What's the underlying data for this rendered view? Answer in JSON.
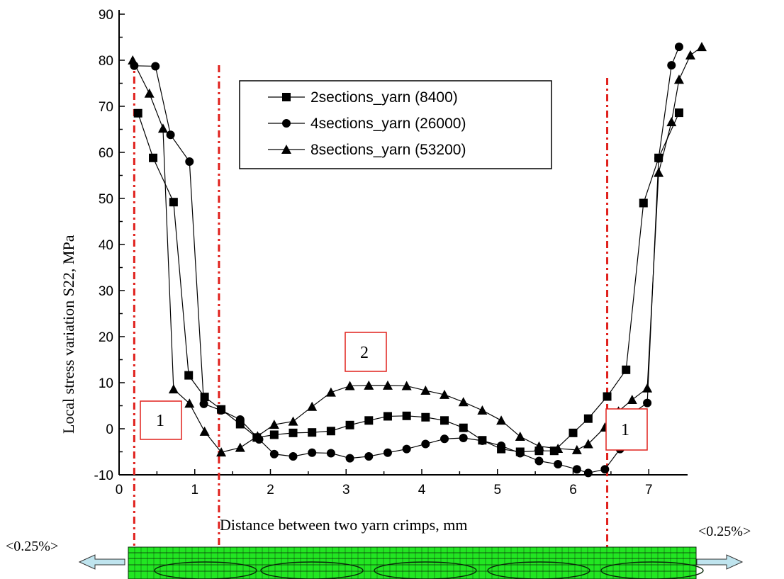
{
  "chart_data": {
    "type": "line",
    "title": "",
    "xlabel": "Distance between two yarn crimps, mm",
    "ylabel": "Local stress variation S22, MPa",
    "xlim": [
      0,
      7.5
    ],
    "ylim": [
      -10,
      90
    ],
    "xticks": [
      0,
      1,
      2,
      3,
      4,
      5,
      6,
      7
    ],
    "yticks": [
      -10,
      0,
      10,
      20,
      30,
      40,
      50,
      60,
      70,
      80,
      90
    ],
    "grid": false,
    "legend_position": "top-center",
    "series": [
      {
        "name": "2sections_yarn (8400)",
        "marker": "square",
        "points": [
          [
            0.25,
            68.5
          ],
          [
            0.45,
            58.8
          ],
          [
            0.72,
            49.2
          ],
          [
            0.92,
            11.6
          ],
          [
            1.13,
            6.9
          ],
          [
            1.35,
            4.2
          ],
          [
            1.6,
            1.0
          ],
          [
            1.82,
            -1.9
          ],
          [
            2.05,
            -1.3
          ],
          [
            2.3,
            -0.9
          ],
          [
            2.55,
            -0.8
          ],
          [
            2.8,
            -0.5
          ],
          [
            3.05,
            0.8
          ],
          [
            3.3,
            1.8
          ],
          [
            3.55,
            2.7
          ],
          [
            3.8,
            2.8
          ],
          [
            4.05,
            2.5
          ],
          [
            4.3,
            1.8
          ],
          [
            4.55,
            0.2
          ],
          [
            4.8,
            -2.5
          ],
          [
            5.05,
            -4.4
          ],
          [
            5.3,
            -5.0
          ],
          [
            5.55,
            -4.8
          ],
          [
            5.75,
            -4.8
          ],
          [
            6.0,
            -0.9
          ],
          [
            6.2,
            2.2
          ],
          [
            6.45,
            7.0
          ],
          [
            6.7,
            12.8
          ],
          [
            6.93,
            49.0
          ],
          [
            7.13,
            58.8
          ],
          [
            7.4,
            68.6
          ]
        ]
      },
      {
        "name": "4sections_yarn (26000)",
        "marker": "circle",
        "points": [
          [
            0.2,
            78.8
          ],
          [
            0.48,
            78.7
          ],
          [
            0.68,
            63.8
          ],
          [
            0.93,
            58.0
          ],
          [
            1.12,
            5.4
          ],
          [
            1.35,
            4.0
          ],
          [
            1.6,
            2.0
          ],
          [
            1.85,
            -2.3
          ],
          [
            2.05,
            -5.5
          ],
          [
            2.3,
            -6.0
          ],
          [
            2.55,
            -5.2
          ],
          [
            2.8,
            -5.3
          ],
          [
            3.05,
            -6.4
          ],
          [
            3.3,
            -6.0
          ],
          [
            3.55,
            -5.2
          ],
          [
            3.8,
            -4.4
          ],
          [
            4.05,
            -3.3
          ],
          [
            4.3,
            -2.2
          ],
          [
            4.55,
            -2.0
          ],
          [
            4.8,
            -2.6
          ],
          [
            5.05,
            -3.7
          ],
          [
            5.3,
            -5.3
          ],
          [
            5.55,
            -7.0
          ],
          [
            5.8,
            -7.7
          ],
          [
            6.05,
            -8.8
          ],
          [
            6.2,
            -9.6
          ],
          [
            6.42,
            -8.8
          ],
          [
            6.62,
            -4.4
          ],
          [
            6.78,
            3.3
          ],
          [
            6.98,
            5.6
          ],
          [
            7.13,
            58.7
          ],
          [
            7.3,
            78.9
          ],
          [
            7.4,
            82.9
          ]
        ]
      },
      {
        "name": "8sections_yarn (53200)",
        "marker": "triangle",
        "points": [
          [
            0.18,
            80.0
          ],
          [
            0.4,
            72.8
          ],
          [
            0.58,
            65.2
          ],
          [
            0.72,
            8.6
          ],
          [
            0.93,
            5.5
          ],
          [
            1.13,
            -0.6
          ],
          [
            1.35,
            -5.1
          ],
          [
            1.6,
            -4.1
          ],
          [
            1.83,
            -1.6
          ],
          [
            2.05,
            0.9
          ],
          [
            2.3,
            1.6
          ],
          [
            2.55,
            4.8
          ],
          [
            2.8,
            7.9
          ],
          [
            3.05,
            9.3
          ],
          [
            3.3,
            9.4
          ],
          [
            3.55,
            9.4
          ],
          [
            3.8,
            9.3
          ],
          [
            4.05,
            8.3
          ],
          [
            4.3,
            7.4
          ],
          [
            4.55,
            5.8
          ],
          [
            4.8,
            4.0
          ],
          [
            5.05,
            1.8
          ],
          [
            5.3,
            -1.7
          ],
          [
            5.55,
            -3.8
          ],
          [
            5.8,
            -4.3
          ],
          [
            6.05,
            -4.6
          ],
          [
            6.2,
            -3.3
          ],
          [
            6.42,
            0.3
          ],
          [
            6.6,
            3.8
          ],
          [
            6.78,
            6.3
          ],
          [
            6.98,
            8.8
          ],
          [
            7.13,
            55.6
          ],
          [
            7.3,
            66.6
          ],
          [
            7.4,
            75.8
          ],
          [
            7.55,
            81.1
          ],
          [
            7.7,
            82.9
          ]
        ]
      }
    ],
    "annotations": {
      "zone_left": "1",
      "zone_middle": "2",
      "zone_right": "1",
      "strain_left": "<0.25%>",
      "strain_right": "<0.25%>"
    },
    "reference_lines_x": [
      0.2,
      1.32,
      6.45
    ]
  },
  "colors": {
    "markers": "#000000",
    "reference_lines": "#e0201c",
    "zone_box_border": "#e0201c",
    "mesh_fill": "#22e622",
    "mesh_lines": "#0a2a0a",
    "arrow_fill": "#bfe4ee"
  }
}
